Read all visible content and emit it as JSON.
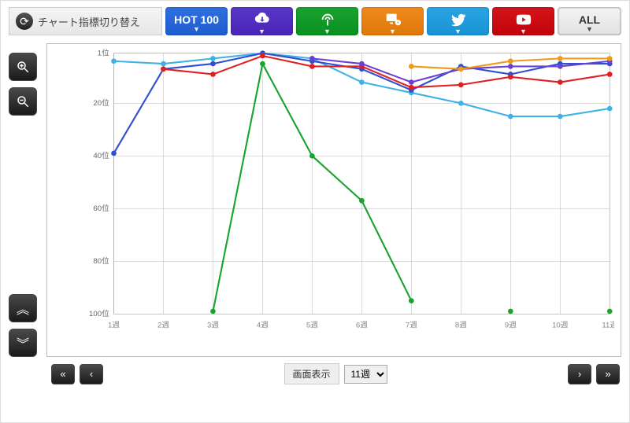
{
  "switcher_label": "チャート指標切り替え",
  "tabs": {
    "hot100": {
      "label": "HOT 100",
      "bg": "#2f6fe0"
    },
    "dl": {
      "bg": "#5a37c8"
    },
    "stream": {
      "bg": "#1aa330"
    },
    "pc": {
      "bg": "#f08a1d"
    },
    "tw": {
      "bg": "#2aa4e5"
    },
    "yt": {
      "bg": "#d4151b"
    },
    "all": {
      "label": "ALL",
      "bg": "#f4f4f4",
      "border": "#bbb"
    }
  },
  "chart": {
    "type": "line",
    "x_categories": [
      "1週",
      "2週",
      "3週",
      "4週",
      "5週",
      "6週",
      "7週",
      "8週",
      "9週",
      "10週",
      "11週"
    ],
    "y_axis": {
      "reversed": true,
      "min": 1,
      "max": 100,
      "ticks": [
        1,
        20,
        40,
        60,
        80,
        100
      ],
      "tick_labels": [
        "1位",
        "20位",
        "40位",
        "60位",
        "80位",
        "100位"
      ]
    },
    "background_color": "#ffffff",
    "grid_color": "#b5b5b5",
    "line_width": 2.2,
    "marker": {
      "shape": "circle",
      "radius": 3.5
    },
    "series": {
      "lightblue": {
        "color": "#3fb1e5",
        "values": [
          4,
          5,
          3,
          1,
          3,
          12,
          16,
          20,
          25,
          25,
          22
        ]
      },
      "blue": {
        "color": "#2f4fd0",
        "values": [
          39,
          7,
          5,
          1,
          4,
          7,
          15,
          6,
          9,
          5,
          5
        ]
      },
      "red": {
        "color": "#e02020",
        "values": [
          null,
          7,
          9,
          2,
          6,
          6,
          14,
          13,
          10,
          12,
          9
        ]
      },
      "purple": {
        "color": "#6a40d0",
        "values": [
          null,
          null,
          null,
          null,
          3,
          5,
          12,
          7,
          6,
          6,
          4
        ]
      },
      "orange": {
        "color": "#f09a1a",
        "values": [
          null,
          null,
          null,
          null,
          null,
          null,
          6,
          7,
          4,
          3,
          3
        ]
      },
      "green": {
        "color": "#1aa330",
        "values": [
          null,
          null,
          99,
          5,
          40,
          57,
          95,
          null,
          99,
          null,
          99
        ]
      }
    }
  },
  "bottom": {
    "view_label": "画面表示",
    "select_value": "11週",
    "options": [
      "11週"
    ]
  }
}
